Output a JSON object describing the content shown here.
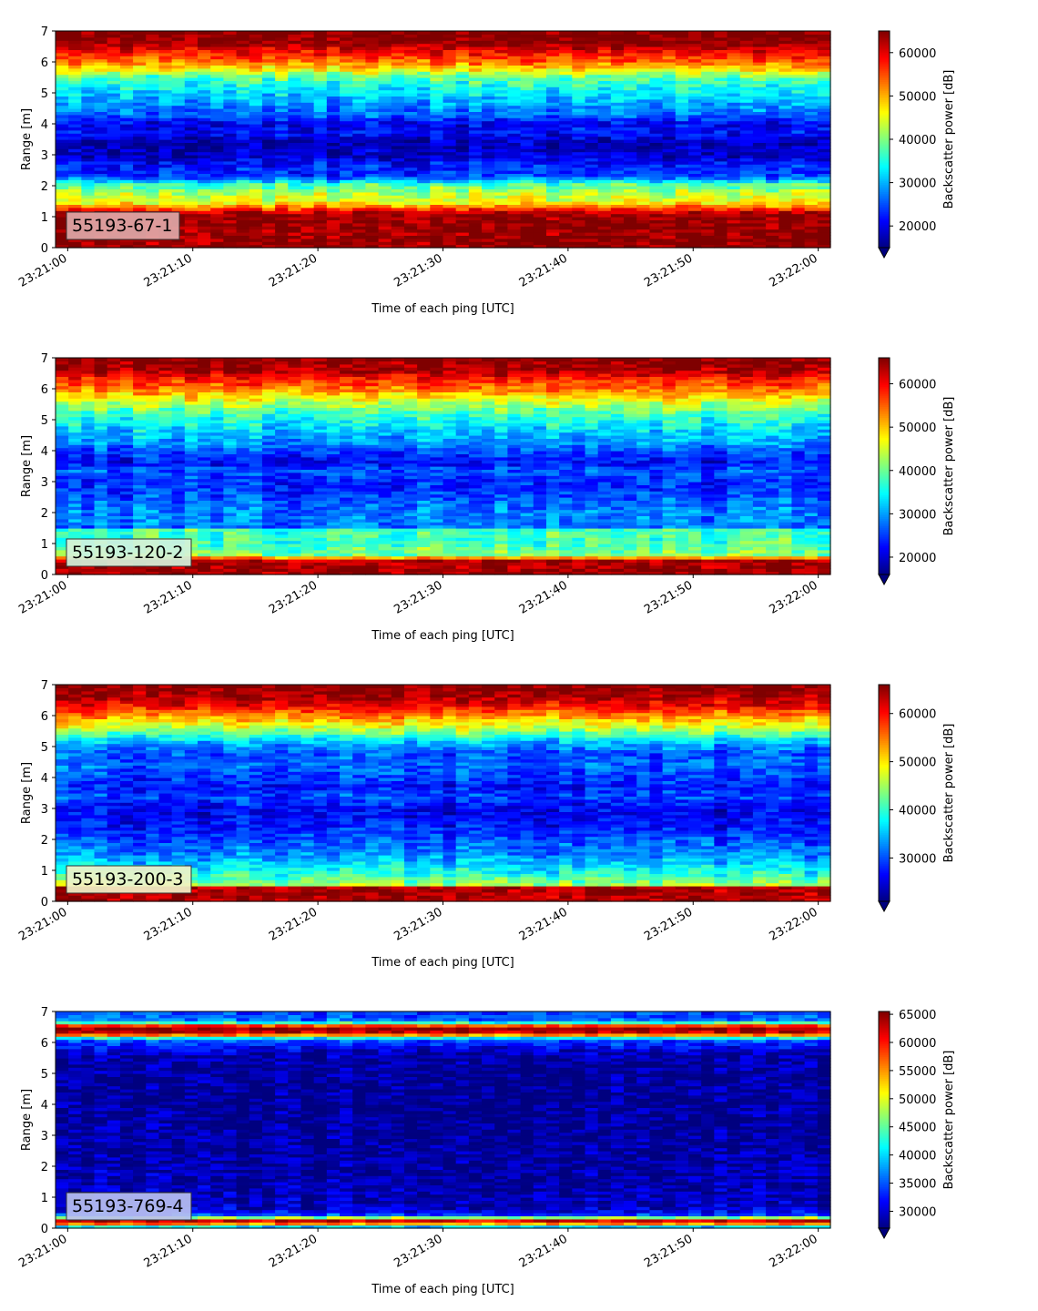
{
  "colormap": "jet",
  "colors": {
    "jet": [
      "#00007f",
      "#0000ff",
      "#007fff",
      "#00ffff",
      "#7fff7f",
      "#ffff00",
      "#ff7f00",
      "#ff0000",
      "#7f0000"
    ],
    "axis": "#000000",
    "label_box_stroke": "#333333"
  },
  "chart_data": [
    {
      "type": "heatmap",
      "label": "55193-67-1",
      "label_color": "#e0a8a8",
      "xlabel": "Time of each ping [UTC]",
      "ylabel": "Range [m]",
      "xticks": [
        "23:21:00",
        "23:21:10",
        "23:21:20",
        "23:21:30",
        "23:21:40",
        "23:21:50",
        "23:22:00"
      ],
      "xlim_seconds": [
        0,
        60
      ],
      "yticks": [
        "0",
        "1",
        "2",
        "3",
        "4",
        "5",
        "6",
        "7"
      ],
      "ylim": [
        0,
        7
      ],
      "colorbar_label": "Backscatter power [dB]",
      "colorbar_ticks": [
        "20000",
        "30000",
        "40000",
        "50000",
        "60000"
      ],
      "clim": [
        15000,
        65000
      ],
      "colorbar_extend": "min",
      "profile": [
        [
          0,
          64000
        ],
        [
          0.15,
          64000
        ],
        [
          0.25,
          64000
        ],
        [
          1.1,
          64000
        ],
        [
          1.25,
          56000
        ],
        [
          1.5,
          45000
        ],
        [
          1.8,
          42000
        ],
        [
          2.05,
          37000
        ],
        [
          2.3,
          24000
        ],
        [
          2.7,
          22000
        ],
        [
          3.0,
          18000
        ],
        [
          3.5,
          18000
        ],
        [
          3.7,
          22000
        ],
        [
          4.0,
          20000
        ],
        [
          4.3,
          26000
        ],
        [
          4.8,
          30000
        ],
        [
          5.2,
          34000
        ],
        [
          5.5,
          38000
        ],
        [
          5.75,
          46000
        ],
        [
          6.0,
          53000
        ],
        [
          6.3,
          58000
        ],
        [
          6.5,
          62000
        ],
        [
          6.7,
          65000
        ],
        [
          7.0,
          65000
        ]
      ]
    },
    {
      "type": "heatmap",
      "label": "55193-120-2",
      "label_color": "#d2f2dc",
      "xlabel": "Time of each ping [UTC]",
      "ylabel": "Range [m]",
      "xticks": [
        "23:21:00",
        "23:21:10",
        "23:21:20",
        "23:21:30",
        "23:21:40",
        "23:21:50",
        "23:22:00"
      ],
      "xlim_seconds": [
        0,
        60
      ],
      "yticks": [
        "0",
        "1",
        "2",
        "3",
        "4",
        "5",
        "6",
        "7"
      ],
      "ylim": [
        0,
        7
      ],
      "colorbar_label": "Backscatter power [dB]",
      "colorbar_ticks": [
        "20000",
        "30000",
        "40000",
        "50000",
        "60000"
      ],
      "clim": [
        16000,
        66000
      ],
      "colorbar_extend": "min",
      "profile": [
        [
          0,
          64000
        ],
        [
          0.25,
          64000
        ],
        [
          0.5,
          64000
        ],
        [
          0.6,
          42000
        ],
        [
          1.0,
          38000
        ],
        [
          1.45,
          38000
        ],
        [
          1.55,
          28000
        ],
        [
          2.0,
          29000
        ],
        [
          2.5,
          26000
        ],
        [
          3.0,
          24000
        ],
        [
          3.4,
          27000
        ],
        [
          3.6,
          22000
        ],
        [
          4.0,
          26000
        ],
        [
          4.3,
          30000
        ],
        [
          4.8,
          34000
        ],
        [
          5.2,
          38000
        ],
        [
          5.6,
          45000
        ],
        [
          6.0,
          54000
        ],
        [
          6.3,
          58000
        ],
        [
          6.6,
          64000
        ],
        [
          7.0,
          66000
        ]
      ]
    },
    {
      "type": "heatmap",
      "label": "55193-200-3",
      "label_color": "#f0f2c8",
      "xlabel": "Time of each ping [UTC]",
      "ylabel": "Range [m]",
      "xticks": [
        "23:21:00",
        "23:21:10",
        "23:21:20",
        "23:21:30",
        "23:21:40",
        "23:21:50",
        "23:22:00"
      ],
      "xlim_seconds": [
        0,
        60
      ],
      "yticks": [
        "0",
        "1",
        "2",
        "3",
        "4",
        "5",
        "6",
        "7"
      ],
      "ylim": [
        0,
        7
      ],
      "colorbar_label": "Backscatter power [dB]",
      "colorbar_ticks": [
        "30000",
        "40000",
        "50000",
        "60000"
      ],
      "clim": [
        21000,
        66000
      ],
      "colorbar_extend": "min",
      "profile": [
        [
          0,
          64000
        ],
        [
          0.2,
          64000
        ],
        [
          0.45,
          64000
        ],
        [
          0.55,
          45000
        ],
        [
          1.0,
          38000
        ],
        [
          1.5,
          33000
        ],
        [
          2.0,
          30000
        ],
        [
          2.5,
          27000
        ],
        [
          3.0,
          26000
        ],
        [
          3.4,
          30000
        ],
        [
          3.7,
          27000
        ],
        [
          4.0,
          29000
        ],
        [
          4.4,
          31000
        ],
        [
          4.8,
          30000
        ],
        [
          5.2,
          36000
        ],
        [
          5.6,
          46000
        ],
        [
          6.0,
          54000
        ],
        [
          6.3,
          60000
        ],
        [
          6.6,
          64000
        ],
        [
          7.0,
          66000
        ]
      ]
    },
    {
      "type": "heatmap",
      "label": "55193-769-4",
      "label_color": "#b8c0f0",
      "xlabel": "Time of each ping [UTC]",
      "ylabel": "Range [m]",
      "xticks": [
        "23:21:00",
        "23:21:10",
        "23:21:20",
        "23:21:30",
        "23:21:40",
        "23:21:50",
        "23:22:00"
      ],
      "xlim_seconds": [
        0,
        60
      ],
      "yticks": [
        "0",
        "1",
        "2",
        "3",
        "4",
        "5",
        "6",
        "7"
      ],
      "ylim": [
        0,
        7
      ],
      "colorbar_label": "Backscatter power [dB]",
      "colorbar_ticks": [
        "30000",
        "35000",
        "40000",
        "45000",
        "50000",
        "55000",
        "60000",
        "65000"
      ],
      "clim": [
        27000,
        65500
      ],
      "colorbar_extend": "min",
      "profile": [
        [
          0,
          33000
        ],
        [
          0.15,
          55000
        ],
        [
          0.3,
          65500
        ],
        [
          0.38,
          36000
        ],
        [
          0.6,
          30000
        ],
        [
          1.0,
          29000
        ],
        [
          2.0,
          28500
        ],
        [
          3.0,
          28000
        ],
        [
          4.0,
          28000
        ],
        [
          5.0,
          28000
        ],
        [
          5.6,
          28500
        ],
        [
          5.8,
          31000
        ],
        [
          6.1,
          35000
        ],
        [
          6.3,
          62000
        ],
        [
          6.5,
          65500
        ],
        [
          6.7,
          36000
        ],
        [
          7.0,
          34000
        ]
      ]
    }
  ]
}
